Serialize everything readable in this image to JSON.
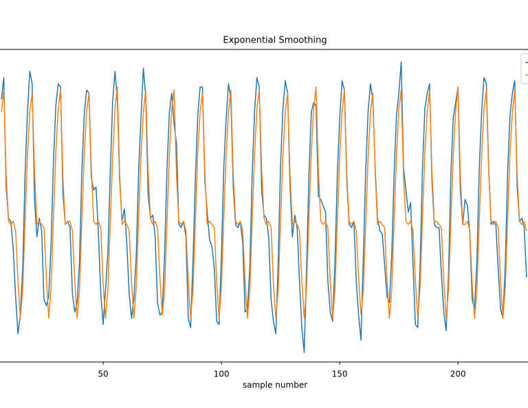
{
  "chart_data": {
    "type": "line",
    "title": "Exponential Smoothing",
    "x_label": "sample number",
    "xlim": [
      6.4,
      229.6
    ],
    "ylim": [
      0,
      10
    ],
    "xticks": [
      50,
      100,
      150,
      200
    ],
    "grid": false,
    "legend": "upper right",
    "x": [
      7,
      8,
      9,
      10,
      11,
      12,
      13,
      14,
      15,
      16,
      17,
      18,
      19,
      20,
      21,
      22,
      23,
      24,
      25,
      26,
      27,
      28,
      29,
      30,
      31,
      32,
      33,
      34,
      35,
      36,
      37,
      38,
      39,
      40,
      41,
      42,
      43,
      44,
      45,
      46,
      47,
      48,
      49,
      50,
      51,
      52,
      53,
      54,
      55,
      56,
      57,
      58,
      59,
      60,
      61,
      62,
      63,
      64,
      65,
      66,
      67,
      68,
      69,
      70,
      71,
      72,
      73,
      74,
      75,
      76,
      77,
      78,
      79,
      80,
      81,
      82,
      83,
      84,
      85,
      86,
      87,
      88,
      89,
      90,
      91,
      92,
      93,
      94,
      95,
      96,
      97,
      98,
      99,
      100,
      101,
      102,
      103,
      104,
      105,
      106,
      107,
      108,
      109,
      110,
      111,
      112,
      113,
      114,
      115,
      116,
      117,
      118,
      119,
      120,
      121,
      122,
      123,
      124,
      125,
      126,
      127,
      128,
      129,
      130,
      131,
      132,
      133,
      134,
      135,
      136,
      137,
      138,
      139,
      140,
      141,
      142,
      143,
      144,
      145,
      146,
      147,
      148,
      149,
      150,
      151,
      152,
      153,
      154,
      155,
      156,
      157,
      158,
      159,
      160,
      161,
      162,
      163,
      164,
      165,
      166,
      167,
      168,
      169,
      170,
      171,
      172,
      173,
      174,
      175,
      176,
      177,
      178,
      179,
      180,
      181,
      182,
      183,
      184,
      185,
      186,
      187,
      188,
      189,
      190,
      191,
      192,
      193,
      194,
      195,
      196,
      197,
      198,
      199,
      200,
      201,
      202,
      203,
      204,
      205,
      206,
      207,
      208,
      209,
      210,
      211,
      212,
      213,
      214,
      215,
      216,
      217,
      218,
      219,
      220,
      221,
      222,
      223,
      224,
      225,
      226,
      227,
      228,
      229
    ],
    "series": [
      {
        "color": "#1f77b4",
        "values": [
          8.4,
          9.1,
          5.6,
          4.6,
          4.5,
          3.6,
          2.1,
          0.9,
          1.5,
          3.0,
          6.0,
          8.0,
          9.3,
          8.9,
          5.2,
          4.0,
          4.6,
          4.2,
          2.0,
          1.8,
          2.1,
          3.8,
          6.4,
          8.2,
          8.9,
          8.8,
          5.4,
          4.4,
          4.5,
          4.3,
          2.2,
          1.6,
          1.9,
          3.2,
          6.1,
          7.9,
          8.7,
          8.6,
          5.9,
          5.5,
          5.6,
          4.1,
          2.2,
          1.2,
          2.3,
          3.5,
          6.0,
          8.3,
          9.3,
          8.4,
          5.8,
          4.5,
          4.9,
          3.8,
          2.2,
          1.4,
          2.0,
          3.4,
          6.1,
          7.8,
          9.4,
          8.5,
          5.4,
          4.6,
          4.7,
          4.0,
          1.9,
          1.5,
          1.6,
          3.5,
          6.2,
          8.0,
          8.6,
          7.6,
          7.0,
          4.4,
          4.3,
          4.5,
          4.0,
          1.4,
          1.1,
          3.3,
          5.9,
          7.9,
          8.8,
          8.8,
          5.8,
          4.8,
          3.9,
          3.7,
          3.0,
          1.3,
          1.2,
          3.4,
          6.2,
          7.8,
          8.9,
          8.4,
          5.6,
          4.4,
          4.3,
          4.5,
          3.8,
          1.6,
          1.7,
          3.0,
          6.0,
          8.0,
          9.1,
          8.8,
          5.5,
          4.7,
          4.6,
          4.0,
          2.0,
          1.3,
          0.9,
          3.2,
          6.3,
          8.1,
          9.0,
          8.6,
          5.6,
          4.0,
          4.7,
          4.3,
          2.6,
          1.1,
          0.3,
          3.0,
          6.0,
          8.0,
          8.3,
          8.2,
          5.3,
          5.2,
          5.0,
          4.8,
          2.6,
          1.6,
          1.3,
          3.2,
          6.0,
          7.8,
          9.0,
          8.7,
          5.8,
          4.4,
          4.3,
          4.5,
          2.6,
          1.5,
          0.7,
          3.4,
          6.1,
          8.0,
          8.9,
          8.4,
          6.2,
          4.6,
          4.2,
          4.1,
          3.1,
          2.1,
          1.9,
          3.4,
          6.0,
          7.9,
          8.6,
          9.6,
          6.2,
          5.5,
          4.8,
          5.1,
          3.1,
          1.2,
          1.1,
          3.1,
          6.2,
          8.1,
          8.6,
          8.9,
          5.8,
          4.4,
          4.3,
          4.3,
          2.8,
          1.6,
          1.0,
          2.8,
          6.0,
          7.8,
          8.3,
          8.8,
          5.5,
          4.4,
          5.2,
          5.0,
          4.1,
          2.0,
          1.7,
          3.2,
          6.2,
          8.0,
          9.1,
          8.9,
          6.2,
          4.4,
          4.5,
          4.4,
          3.0,
          1.7,
          1.4,
          3.1,
          6.1,
          7.9,
          8.6,
          9.0,
          5.6,
          4.5,
          4.6,
          4.3,
          2.7
        ]
      },
      {
        "color": "#ff7f0e",
        "values": [
          8.0,
          8.7,
          6.0,
          4.5,
          4.4,
          4.5,
          4.2,
          2.6,
          1.4,
          2.3,
          4.5,
          6.6,
          8.0,
          8.6,
          6.1,
          4.4,
          4.5,
          4.4,
          4.3,
          2.7,
          1.4,
          2.4,
          4.6,
          6.7,
          8.1,
          8.7,
          5.9,
          4.4,
          4.5,
          4.5,
          4.2,
          2.6,
          1.4,
          2.3,
          4.5,
          6.6,
          8.0,
          8.6,
          6.2,
          4.5,
          4.4,
          4.5,
          4.3,
          2.5,
          1.4,
          2.3,
          4.4,
          6.5,
          8.1,
          8.8,
          6.0,
          4.4,
          4.5,
          4.4,
          4.2,
          2.6,
          1.4,
          2.4,
          4.6,
          6.6,
          8.0,
          8.7,
          6.1,
          4.6,
          4.4,
          4.5,
          4.3,
          2.7,
          1.5,
          2.3,
          4.5,
          6.6,
          8.1,
          8.7,
          6.0,
          4.5,
          4.4,
          4.5,
          4.2,
          2.6,
          1.4,
          2.3,
          4.5,
          6.7,
          8.0,
          8.6,
          6.1,
          4.4,
          4.5,
          4.4,
          4.3,
          2.6,
          1.4,
          2.4,
          4.6,
          6.6,
          8.0,
          8.7,
          6.0,
          4.5,
          4.4,
          4.5,
          4.2,
          2.6,
          1.4,
          2.3,
          4.5,
          6.6,
          8.1,
          8.7,
          6.2,
          4.6,
          4.4,
          4.5,
          4.3,
          2.5,
          1.4,
          2.3,
          4.5,
          6.6,
          8.0,
          8.6,
          6.0,
          4.4,
          4.5,
          4.4,
          4.2,
          2.6,
          1.4,
          2.4,
          4.6,
          6.7,
          8.1,
          8.8,
          6.1,
          4.5,
          4.4,
          4.5,
          4.3,
          2.6,
          1.4,
          2.3,
          4.5,
          6.6,
          8.0,
          8.7,
          6.0,
          4.5,
          4.4,
          4.5,
          4.2,
          2.7,
          1.5,
          2.3,
          4.4,
          6.5,
          8.0,
          8.6,
          6.1,
          4.4,
          4.5,
          4.4,
          4.3,
          2.6,
          1.4,
          2.3,
          4.5,
          6.6,
          8.1,
          8.7,
          5.9,
          4.5,
          4.4,
          4.5,
          4.2,
          2.6,
          1.4,
          2.4,
          4.6,
          6.7,
          8.0,
          8.7,
          6.1,
          4.5,
          4.5,
          4.4,
          4.3,
          2.6,
          1.4,
          2.3,
          4.5,
          6.6,
          8.0,
          8.8,
          6.0,
          4.4,
          4.4,
          4.5,
          4.2,
          2.5,
          1.4,
          2.3,
          4.5,
          6.6,
          8.1,
          8.7,
          6.1,
          4.5,
          4.4,
          4.5,
          4.3,
          2.6,
          1.4,
          2.4,
          4.6,
          6.7,
          8.0,
          8.7,
          6.0,
          4.5,
          4.4,
          4.5,
          4.2
        ]
      }
    ]
  }
}
